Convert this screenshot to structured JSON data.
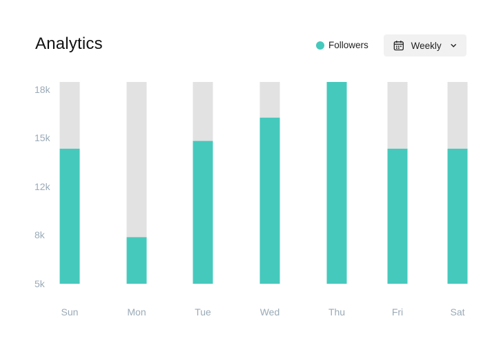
{
  "header": {
    "title": "Analytics",
    "legend_label": "Followers",
    "dropdown_label": "Weekly"
  },
  "colors": {
    "series": "#45c9bd",
    "track": "#e2e2e2",
    "tick": "#9aaab6"
  },
  "chart_data": {
    "type": "bar",
    "categories": [
      "Sun",
      "Mon",
      "Tue",
      "Wed",
      "Thu",
      "Fri",
      "Sat"
    ],
    "series": [
      {
        "name": "Followers",
        "values": [
          13.7,
          8.0,
          14.2,
          15.7,
          18.0,
          13.7,
          13.7
        ]
      }
    ],
    "y_ticks": [
      "18k",
      "15k",
      "12k",
      "8k",
      "5k"
    ],
    "ylim": [
      5,
      18
    ],
    "xlabel": "",
    "ylabel": "",
    "legend_position": "top-right",
    "grid": false
  }
}
